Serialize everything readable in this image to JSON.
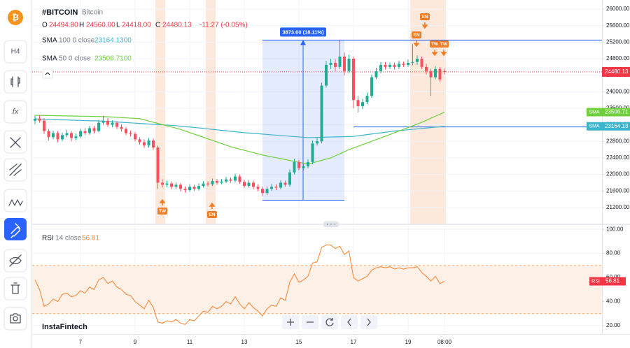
{
  "header": {
    "symbol": "#BITCOIN",
    "name": "Bitcoin",
    "ohlc": [
      {
        "label": "O",
        "value": "24494.80"
      },
      {
        "label": "H",
        "value": "24560.00"
      },
      {
        "label": "L",
        "value": "24418.00"
      },
      {
        "label": "C",
        "value": "24480.13"
      }
    ],
    "change": "-11.27 (-0.05%)"
  },
  "sidebar": {
    "logo": "₿",
    "interval": "H4",
    "indicators": "fx"
  },
  "watermark": "InstaFintech",
  "chart_data": [
    {
      "type": "candlestick",
      "title": "#BITCOIN",
      "categories": [
        null,
        null,
        null,
        null,
        null,
        null,
        null,
        null,
        null,
        null,
        "7",
        null,
        null,
        null,
        null,
        null,
        null,
        null,
        null,
        null,
        null,
        null,
        "9",
        null,
        null,
        null,
        null,
        null,
        null,
        null,
        null,
        null,
        null,
        null,
        "11",
        null,
        null,
        null,
        null,
        null,
        null,
        null,
        null,
        null,
        null,
        null,
        "13",
        null,
        null,
        null,
        null,
        null,
        null,
        null,
        null,
        null,
        null,
        null,
        "15",
        null,
        null,
        null,
        null,
        null,
        null,
        null,
        null,
        null,
        null,
        null,
        "17",
        null,
        null,
        null,
        null,
        null,
        null,
        null,
        null,
        null,
        null,
        null,
        "19",
        null,
        null,
        null,
        null,
        null,
        null,
        null,
        "08:00"
      ],
      "open": [
        23300,
        23350,
        23300,
        23050,
        22900,
        23000,
        22850,
        22950,
        23000,
        22880,
        22920,
        23050,
        23000,
        23120,
        23050,
        23250,
        23300,
        23200,
        23250,
        23150,
        23100,
        23000,
        22980,
        22850,
        22780,
        22700,
        22820,
        22650,
        21800,
        21750,
        21780,
        21700,
        21750,
        21650,
        21620,
        21700,
        21650,
        21720,
        21780,
        21760,
        21840,
        21800,
        21830,
        21880,
        21850,
        21950,
        21820,
        21720,
        21800,
        21700,
        21650,
        21550,
        21650,
        21700,
        21680,
        21800,
        21750,
        22050,
        22300,
        22150,
        22200,
        22300,
        22750,
        22800,
        24150,
        24650,
        24700,
        24600,
        24850,
        24500,
        24800,
        23800,
        23650,
        23750,
        23900,
        24350,
        24500,
        24650,
        24600,
        24650,
        24600,
        24680,
        24650,
        24700,
        24720,
        24800,
        24600,
        24500,
        24350,
        24550,
        24494.8
      ],
      "high": [
        23420,
        23430,
        23360,
        23100,
        23060,
        23050,
        23010,
        23080,
        23050,
        22990,
        23110,
        23120,
        23180,
        23170,
        23320,
        23420,
        23360,
        23310,
        23290,
        23210,
        23150,
        23060,
        23030,
        22900,
        22850,
        22880,
        22870,
        22700,
        21880,
        21850,
        21830,
        21810,
        21790,
        21710,
        21760,
        21750,
        21780,
        21840,
        21830,
        21900,
        21890,
        21890,
        21940,
        21930,
        22020,
        22000,
        21870,
        21860,
        21850,
        21760,
        21700,
        21710,
        21770,
        21760,
        21860,
        21850,
        22120,
        22380,
        22350,
        22270,
        22370,
        22820,
        22880,
        24220,
        24750,
        24800,
        24780,
        25250,
        24950,
        24900,
        24850,
        23900,
        23830,
        23980,
        24420,
        24580,
        24720,
        24720,
        24710,
        24700,
        24750,
        24730,
        24780,
        25150,
        24880,
        24850,
        24680,
        24560,
        24620,
        24600,
        24560
      ],
      "low": [
        23220,
        23250,
        22980,
        22820,
        22850,
        22780,
        22800,
        22900,
        22800,
        22830,
        22880,
        22950,
        22960,
        22990,
        23020,
        23200,
        23150,
        23140,
        23100,
        23040,
        22950,
        22920,
        22800,
        22720,
        22640,
        22650,
        22600,
        21650,
        21680,
        21690,
        21640,
        21650,
        21590,
        21560,
        21580,
        21600,
        21610,
        21680,
        21710,
        21720,
        21750,
        21760,
        21790,
        21800,
        21810,
        21770,
        21670,
        21680,
        21640,
        21590,
        21480,
        21500,
        21600,
        21620,
        21640,
        21700,
        21700,
        22000,
        22100,
        22100,
        22150,
        22250,
        22700,
        22750,
        24100,
        24550,
        24500,
        24550,
        24400,
        24450,
        23600,
        23500,
        23580,
        23700,
        23850,
        24300,
        24450,
        24540,
        24550,
        24540,
        24550,
        24600,
        24600,
        24640,
        24650,
        24550,
        24420,
        23900,
        24300,
        24250,
        24418
      ],
      "close": [
        23350,
        23300,
        23050,
        22900,
        23000,
        22850,
        22950,
        23000,
        22880,
        22920,
        23050,
        23000,
        23120,
        23050,
        23250,
        23300,
        23200,
        23250,
        23150,
        23100,
        23000,
        22980,
        22850,
        22780,
        22700,
        22820,
        22650,
        21800,
        21750,
        21780,
        21700,
        21750,
        21650,
        21620,
        21700,
        21650,
        21720,
        21780,
        21760,
        21840,
        21800,
        21830,
        21880,
        21850,
        21950,
        21820,
        21720,
        21800,
        21700,
        21650,
        21550,
        21650,
        21700,
        21680,
        21800,
        21750,
        22050,
        22300,
        22150,
        22200,
        22300,
        22750,
        22800,
        24150,
        24650,
        24700,
        24600,
        24850,
        24500,
        24800,
        23800,
        23650,
        23750,
        23900,
        24350,
        24500,
        24650,
        24600,
        24650,
        24600,
        24680,
        24650,
        24700,
        24720,
        24800,
        24600,
        24500,
        24350,
        24550,
        24300,
        24480.13
      ],
      "up_color": "#22ab94",
      "down_color": "#f7525f",
      "series": [
        {
          "name": "SMA",
          "params": "100 0 close",
          "legend_value": "23164.1300",
          "tag_value": "23164.13",
          "color": "#3cb4cc",
          "values": [
            23345,
            23340,
            23336,
            23332,
            23329,
            23325,
            23321,
            23318,
            23314,
            23310,
            23307,
            23303,
            23300,
            23297,
            23293,
            23290,
            23283,
            23276,
            23269,
            23262,
            23255,
            23248,
            23241,
            23234,
            23227,
            23220,
            23213,
            23206,
            23200,
            23193,
            23186,
            23180,
            23169,
            23158,
            23147,
            23136,
            23125,
            23114,
            23102,
            23090,
            23079,
            23067,
            23056,
            23044,
            23033,
            23021,
            23010,
            23001,
            22993,
            22984,
            22976,
            22967,
            22958,
            22950,
            22941,
            22933,
            22924,
            22916,
            22907,
            22899,
            22890,
            22893,
            22896,
            22899,
            22902,
            22905,
            22908,
            22911,
            22914,
            22917,
            22920,
            22934,
            22949,
            22963,
            22978,
            22992,
            23006,
            23021,
            23035,
            23050,
            23060,
            23070,
            23081,
            23091,
            23101,
            23112,
            23122,
            23133,
            23143,
            23154,
            23164.13
          ]
        },
        {
          "name": "SMA",
          "params": "50 0 close",
          "legend_value": "23506.7100",
          "tag_value": "23506.71",
          "color": "#6fcf3c",
          "values": [
            23430,
            23428,
            23426,
            23424,
            23422,
            23420,
            23418,
            23416,
            23414,
            23412,
            23410,
            23408,
            23406,
            23404,
            23402,
            23400,
            23394,
            23388,
            23381,
            23375,
            23369,
            23362,
            23356,
            23350,
            23321,
            23292,
            23263,
            23234,
            23206,
            23177,
            23148,
            23119,
            23090,
            23052,
            23014,
            22976,
            22938,
            22899,
            22861,
            22823,
            22785,
            22747,
            22708,
            22670,
            22641,
            22613,
            22584,
            22556,
            22527,
            22499,
            22470,
            22448,
            22426,
            22404,
            22382,
            22360,
            22338,
            22316,
            22294,
            22272,
            22250,
            22280,
            22310,
            22340,
            22370,
            22400,
            22450,
            22500,
            22550,
            22600,
            22641,
            22681,
            22722,
            22762,
            22803,
            22844,
            22884,
            22925,
            22967,
            23009,
            23051,
            23093,
            23134,
            23176,
            23218,
            23260,
            23309,
            23359,
            23408,
            23457,
            23506.71
          ]
        }
      ],
      "price_tag": "24480.13",
      "price_color": "#f23645",
      "measure": {
        "from": 21376.4,
        "to": 25250,
        "label": "3873.60 (18.11%)",
        "color": "#2962ff"
      },
      "levels": [
        25250,
        23150
      ],
      "annotations": [
        "TW",
        "EN",
        "EN",
        "EN",
        "TW",
        "TW"
      ],
      "ylim": [
        20810,
        26220
      ],
      "yticks": [
        {
          "value": 21200,
          "label": "21200.00"
        },
        {
          "value": 21600,
          "label": "21600.00"
        },
        {
          "value": 22000,
          "label": "22000.00"
        },
        {
          "value": 22400,
          "label": "22400.00"
        },
        {
          "value": 22800,
          "label": "22800.00"
        },
        {
          "value": 23200,
          "label": "23200.00"
        },
        {
          "value": 23600,
          "label": "23600.00"
        },
        {
          "value": 24000,
          "label": "24000.00"
        },
        {
          "value": 24400,
          "label": "24400.00"
        },
        {
          "value": 24800,
          "label": "24800.00"
        },
        {
          "value": 25200,
          "label": "25200.00"
        },
        {
          "value": 25600,
          "label": "25600.00"
        },
        {
          "value": 26000,
          "label": "26000.00"
        }
      ],
      "grid": true
    },
    {
      "type": "line",
      "title": "RSI",
      "params": "14 close",
      "value_label": "56.81",
      "color": "#f7893b",
      "tag_color": "#f23645",
      "values": [
        58,
        50,
        36,
        38,
        42,
        40,
        46,
        47,
        44,
        45,
        49,
        47,
        52,
        50,
        58,
        60,
        55,
        57,
        52,
        50,
        46,
        45,
        40,
        37,
        34,
        41,
        35,
        23,
        22,
        24,
        23,
        25,
        22,
        21,
        25,
        24,
        28,
        32,
        31,
        36,
        34,
        36,
        40,
        38,
        44,
        38,
        34,
        39,
        35,
        32,
        28,
        34,
        37,
        36,
        43,
        41,
        56,
        63,
        56,
        58,
        61,
        72,
        73,
        85,
        87,
        87,
        84,
        86,
        79,
        82,
        60,
        57,
        59,
        61,
        66,
        68,
        69,
        68,
        69,
        67,
        68,
        67,
        68,
        68,
        69,
        64,
        61,
        57,
        61,
        55,
        56.81
      ],
      "band": [
        30,
        70
      ],
      "ylim": [
        13,
        103
      ],
      "yticks": [
        {
          "value": 20,
          "label": "20.00"
        },
        {
          "value": 40,
          "label": "40.00"
        },
        {
          "value": 60,
          "label": "60.00"
        },
        {
          "value": 80,
          "label": "80.00"
        },
        {
          "value": 100,
          "label": "100.00"
        }
      ],
      "grid": true
    }
  ]
}
